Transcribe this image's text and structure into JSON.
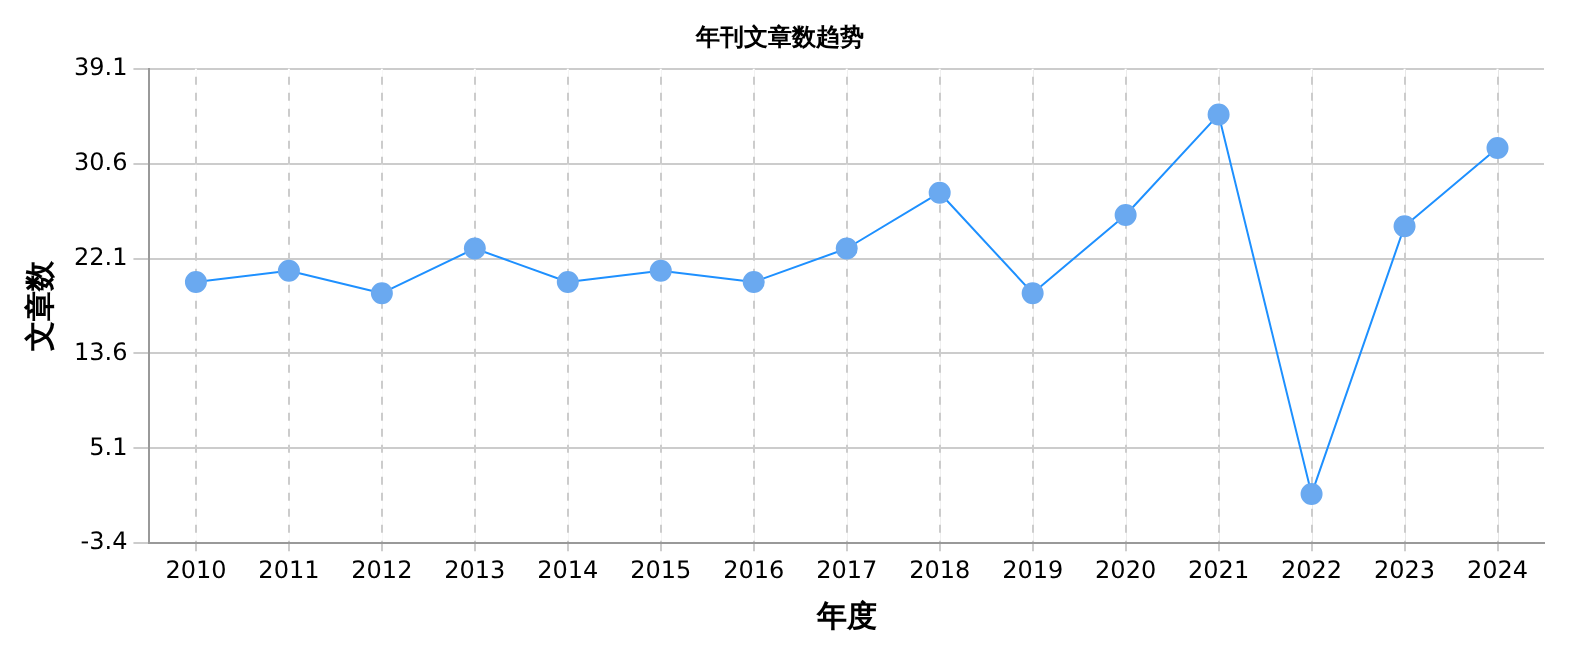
{
  "chart_data": {
    "type": "line",
    "title": "年刊文章数趋势",
    "xlabel": "年度",
    "ylabel": "文章数",
    "categories": [
      "2010",
      "2011",
      "2012",
      "2013",
      "2014",
      "2015",
      "2016",
      "2017",
      "2018",
      "2019",
      "2020",
      "2021",
      "2022",
      "2023",
      "2024"
    ],
    "series": [
      {
        "color": "#1e90ff",
        "values": [
          20,
          21,
          19,
          23,
          20,
          21,
          20,
          23,
          28,
          19,
          26,
          35,
          1,
          25,
          32
        ]
      }
    ],
    "ylim": [
      -3.4,
      39.1
    ],
    "yticks": [
      -3.4,
      5.1,
      13.6,
      22.1,
      30.6,
      39.1
    ],
    "grid": true,
    "marker": "circle",
    "line_style": "solid"
  }
}
